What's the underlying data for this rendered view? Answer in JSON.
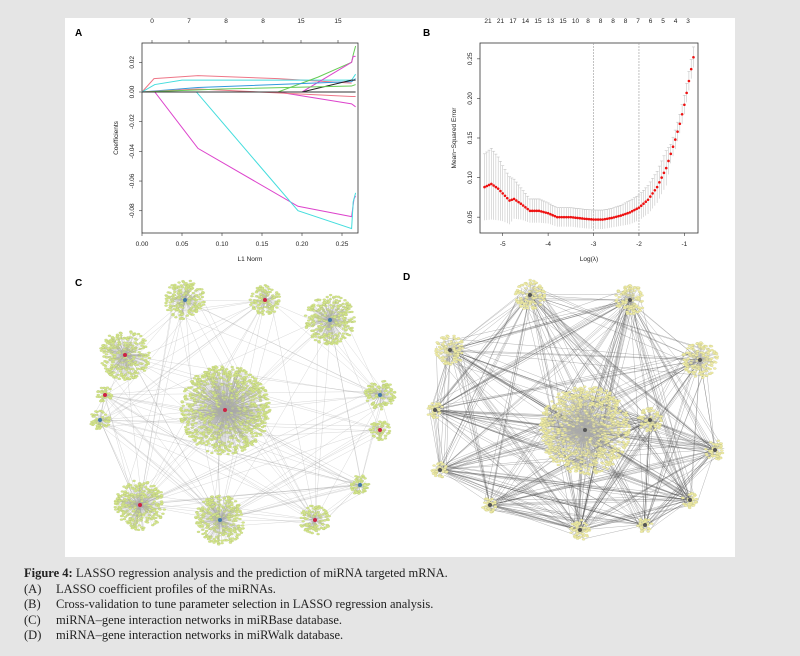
{
  "panel_labels": {
    "a": "A",
    "b": "B",
    "c": "C",
    "d": "D"
  },
  "chart_data": [
    {
      "type": "line",
      "panel": "A",
      "xlabel": "L1 Norm",
      "ylabel": "Coefficients",
      "xlim": [
        0,
        0.27
      ],
      "ylim": [
        -0.095,
        0.033
      ],
      "xticks": [
        "0.00",
        "0.05",
        "0.10",
        "0.15",
        "0.20",
        "0.25"
      ],
      "yticks": [
        "-0.08",
        "-0.06",
        "-0.04",
        "-0.02",
        "0.00",
        "0.02"
      ],
      "top_axis_labels": [
        "0",
        "7",
        "8",
        "8",
        "15",
        "15"
      ],
      "series": [
        {
          "color": "#dd44cc",
          "points": [
            [
              0,
              0
            ],
            [
              0.016,
              0
            ],
            [
              0.07,
              -0.038
            ],
            [
              0.195,
              -0.077
            ],
            [
              0.262,
              -0.084
            ],
            [
              0.265,
              -0.072
            ],
            [
              0.267,
              -0.07
            ]
          ]
        },
        {
          "color": "#44dddd",
          "points": [
            [
              0,
              0
            ],
            [
              0.068,
              0
            ],
            [
              0.195,
              -0.08
            ],
            [
              0.262,
              -0.092
            ],
            [
              0.264,
              -0.074
            ],
            [
              0.267,
              -0.068
            ]
          ]
        },
        {
          "color": "#ee7788",
          "points": [
            [
              0,
              0
            ],
            [
              0.015,
              0.009
            ],
            [
              0.07,
              0.011
            ],
            [
              0.17,
              0.009
            ],
            [
              0.262,
              0.006
            ]
          ]
        },
        {
          "color": "#44dddd",
          "points": [
            [
              0,
              0
            ],
            [
              0.016,
              0.005
            ],
            [
              0.05,
              0.008
            ],
            [
              0.262,
              0.008
            ],
            [
              0.267,
              0.012
            ]
          ]
        },
        {
          "color": "#66cc55",
          "points": [
            [
              0,
              0
            ],
            [
              0.17,
              0
            ],
            [
              0.22,
              0.01
            ],
            [
              0.262,
              0.02
            ],
            [
              0.264,
              0.025
            ],
            [
              0.267,
              0.031
            ]
          ]
        },
        {
          "color": "#dd44cc",
          "points": [
            [
              0,
              0
            ],
            [
              0.2,
              0
            ],
            [
              0.262,
              0.02
            ],
            [
              0.264,
              0.024
            ],
            [
              0.267,
              0.024
            ]
          ]
        },
        {
          "color": "#3399dd",
          "points": [
            [
              0,
              0
            ],
            [
              0.07,
              0.003
            ],
            [
              0.262,
              0.007
            ],
            [
              0.267,
              0.009
            ]
          ]
        },
        {
          "color": "#222222",
          "points": [
            [
              0,
              0
            ],
            [
              0.2,
              0
            ],
            [
              0.262,
              0.008
            ],
            [
              0.267,
              0.008
            ]
          ]
        },
        {
          "color": "#dd44cc",
          "points": [
            [
              0,
              0
            ],
            [
              0.17,
              0
            ],
            [
              0.262,
              -0.008
            ],
            [
              0.267,
              -0.01
            ]
          ]
        },
        {
          "color": "#ee7788",
          "points": [
            [
              0,
              0
            ],
            [
              0.07,
              0.002
            ],
            [
              0.262,
              -0.003
            ],
            [
              0.267,
              -0.003
            ]
          ]
        },
        {
          "color": "#66cc55",
          "points": [
            [
              0,
              0
            ],
            [
              0.1,
              0.002
            ],
            [
              0.262,
              0.004
            ],
            [
              0.267,
              0.005
            ]
          ]
        },
        {
          "color": "#333333",
          "points": [
            [
              0,
              0
            ],
            [
              0.267,
              0
            ]
          ]
        }
      ]
    },
    {
      "type": "scatter",
      "panel": "B",
      "xlabel": "Log(λ)",
      "ylabel": "Mean−Squared Error",
      "xlim": [
        -5.5,
        -0.7
      ],
      "ylim": [
        0.03,
        0.27
      ],
      "xticks": [
        "-5",
        "-4",
        "-3",
        "-2",
        "-1"
      ],
      "yticks": [
        "0.05",
        "0.10",
        "0.15",
        "0.20",
        "0.25"
      ],
      "top_axis_labels": [
        "21",
        "21",
        "17",
        "14",
        "15",
        "13",
        "15",
        "10",
        "8",
        "8",
        "8",
        "8",
        "7",
        "6",
        "5",
        "4",
        "3"
      ],
      "vlines": [
        -3,
        -2
      ],
      "point_color": "#ee1111",
      "errorbar_color": "#bbbbbb",
      "points": [
        [
          -5.4,
          0.088,
          0.042
        ],
        [
          -5.25,
          0.092,
          0.045
        ],
        [
          -5.1,
          0.086,
          0.04
        ],
        [
          -5.0,
          0.08,
          0.035
        ],
        [
          -4.85,
          0.071,
          0.03
        ],
        [
          -4.75,
          0.073,
          0.025
        ],
        [
          -4.6,
          0.067,
          0.02
        ],
        [
          -4.4,
          0.058,
          0.015
        ],
        [
          -4.2,
          0.058,
          0.015
        ],
        [
          -4.0,
          0.055,
          0.013
        ],
        [
          -3.8,
          0.05,
          0.012
        ],
        [
          -3.5,
          0.05,
          0.012
        ],
        [
          -3.2,
          0.048,
          0.012
        ],
        [
          -3.0,
          0.047,
          0.012
        ],
        [
          -2.8,
          0.047,
          0.012
        ],
        [
          -2.6,
          0.049,
          0.012
        ],
        [
          -2.4,
          0.052,
          0.013
        ],
        [
          -2.2,
          0.056,
          0.015
        ],
        [
          -2.0,
          0.062,
          0.016
        ],
        [
          -1.8,
          0.072,
          0.018
        ],
        [
          -1.6,
          0.088,
          0.02
        ],
        [
          -1.4,
          0.112,
          0.022
        ],
        [
          -1.3,
          0.13,
          0.012
        ],
        [
          -1.2,
          0.148,
          0.012
        ],
        [
          -1.1,
          0.168,
          0.012
        ],
        [
          -1.0,
          0.192,
          0.012
        ],
        [
          -0.95,
          0.207,
          0.012
        ],
        [
          -0.9,
          0.222,
          0.012
        ],
        [
          -0.85,
          0.237,
          0.012
        ],
        [
          -0.8,
          0.252,
          0.013
        ]
      ]
    }
  ],
  "networks": {
    "c": {
      "node_color": "#d4e68a",
      "hub_colors": [
        "#cc2244",
        "#4477aa"
      ]
    },
    "d": {
      "node_color": "#f2eca8",
      "hub_color": "#555555"
    }
  },
  "caption": {
    "title_bold": "Figure 4:",
    "title_rest": " LASSO regression analysis and the prediction of miRNA targeted mRNA.",
    "items": [
      {
        "label": "(A)",
        "text": "LASSO coefficient profiles of the miRNAs."
      },
      {
        "label": "(B)",
        "text": "Cross-validation to tune parameter selection in LASSO regression analysis."
      },
      {
        "label": "(C)",
        "text": "miRNA–gene interaction networks in miRBase database."
      },
      {
        "label": "(D)",
        "text": "miRNA–gene interaction networks in miRWalk database."
      }
    ]
  }
}
